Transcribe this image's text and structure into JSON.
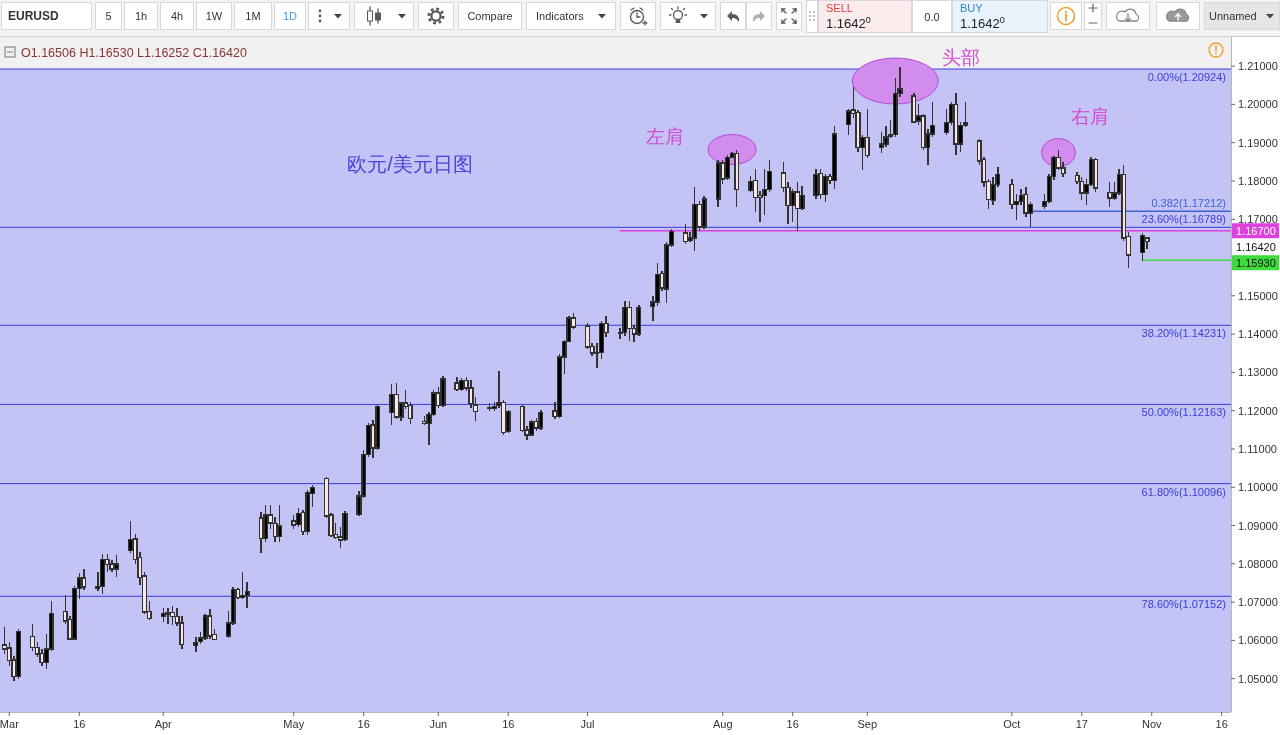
{
  "chart_data": {
    "type": "candlestick",
    "title": "欧元/美元日图",
    "subtitle": "O1.16506 H1.16530 L1.16252 C1.16420",
    "x": [
      "--02-28",
      "--03-01",
      "--03-02",
      "--03-03",
      "--03-06",
      "--03-07",
      "--03-08",
      "--03-09",
      "--03-10",
      "--03-13",
      "--03-14",
      "--03-15",
      "--03-16",
      "--03-17",
      "--03-20",
      "--03-21",
      "--03-22",
      "--03-23",
      "--03-24",
      "--03-27",
      "--03-28",
      "--03-29",
      "--03-30",
      "--03-31",
      "--04-03",
      "--04-04",
      "--04-05",
      "--04-06",
      "--04-07",
      "--04-10",
      "--04-11",
      "--04-12",
      "--04-13",
      "--04-14",
      "--04-17",
      "--04-18",
      "--04-19",
      "--04-20",
      "--04-21",
      "--04-24",
      "--04-25",
      "--04-26",
      "--04-27",
      "--04-28",
      "--05-01",
      "--05-02",
      "--05-03",
      "--05-04",
      "--05-05",
      "--05-08",
      "--05-09",
      "--05-10",
      "--05-11",
      "--05-12",
      "--05-15",
      "--05-16",
      "--05-17",
      "--05-18",
      "--05-19",
      "--05-22",
      "--05-23",
      "--05-24",
      "--05-25",
      "--05-26",
      "--05-29",
      "--05-30",
      "--05-31",
      "--06-01",
      "--06-02",
      "--06-05",
      "--06-06",
      "--06-07",
      "--06-08",
      "--06-09",
      "--06-12",
      "--06-13",
      "--06-14",
      "--06-15",
      "--06-16",
      "--06-19",
      "--06-20",
      "--06-21",
      "--06-22",
      "--06-23",
      "--06-26",
      "--06-27",
      "--06-28",
      "--06-29",
      "--06-30",
      "--07-03",
      "--07-04",
      "--07-05",
      "--07-06",
      "--07-07",
      "--07-10",
      "--07-11",
      "--07-12",
      "--07-13",
      "--07-14",
      "--07-17",
      "--07-18",
      "--07-19",
      "--07-20",
      "--07-21",
      "--07-24",
      "--07-25",
      "--07-26",
      "--07-27",
      "--07-28",
      "--07-31",
      "--08-01",
      "--08-02",
      "--08-03",
      "--08-04",
      "--08-07",
      "--08-08",
      "--08-09",
      "--08-10",
      "--08-11",
      "--08-14",
      "--08-15",
      "--08-16",
      "--08-17",
      "--08-18",
      "--08-21",
      "--08-22",
      "--08-23",
      "--08-24",
      "--08-25",
      "--08-28",
      "--08-29",
      "--08-30",
      "--08-31",
      "--09-01",
      "--09-04",
      "--09-05",
      "--09-06",
      "--09-07",
      "--09-08",
      "--09-11",
      "--09-12",
      "--09-13",
      "--09-14",
      "--09-15",
      "--09-18",
      "--09-19",
      "--09-20",
      "--09-21",
      "--09-22",
      "--09-25",
      "--09-26",
      "--09-27",
      "--09-28",
      "--09-29",
      "--10-02",
      "--10-03",
      "--10-04",
      "--10-05",
      "--10-06",
      "--10-09",
      "--10-10",
      "--10-11",
      "--10-12",
      "--10-13",
      "--10-16",
      "--10-17",
      "--10-18",
      "--10-19",
      "--10-20",
      "--10-23",
      "--10-24",
      "--10-25",
      "--10-26",
      "--10-27",
      "--10-30",
      "--10-31"
    ],
    "ohlc": [
      [
        1.0588,
        1.0634,
        1.0566,
        1.0578
      ],
      [
        1.058,
        1.0593,
        1.0536,
        1.0547
      ],
      [
        1.0549,
        1.0558,
        1.0497,
        1.0505
      ],
      [
        1.0505,
        1.0629,
        1.0501,
        1.0623
      ],
      [
        1.061,
        1.0642,
        1.0575,
        1.0581
      ],
      [
        1.0582,
        1.0593,
        1.0558,
        1.0564
      ],
      [
        1.0566,
        1.0575,
        1.0534,
        1.0543
      ],
      [
        1.0543,
        1.0616,
        1.0527,
        1.0578
      ],
      [
        1.0578,
        1.0702,
        1.0575,
        1.0671
      ],
      [
        1.0676,
        1.0717,
        1.0645,
        1.0651
      ],
      [
        1.0654,
        1.0663,
        1.0602,
        1.0604
      ],
      [
        1.0604,
        1.0741,
        1.0602,
        1.0735
      ],
      [
        1.0735,
        1.0774,
        1.0711,
        1.0763
      ],
      [
        1.0763,
        1.0785,
        1.0733,
        1.0739
      ],
      [
        1.0735,
        1.0776,
        1.073,
        1.0741
      ],
      [
        1.0741,
        1.0824,
        1.0724,
        1.0811
      ],
      [
        1.0811,
        1.0824,
        1.0781,
        1.0798
      ],
      [
        1.08,
        1.0807,
        1.0781,
        1.0787
      ],
      [
        1.0787,
        1.082,
        1.0768,
        1.08
      ],
      [
        1.0835,
        1.091,
        1.0829,
        1.0864
      ],
      [
        1.0865,
        1.0877,
        1.0802,
        1.0811
      ],
      [
        1.0816,
        1.0829,
        1.0746,
        1.0765
      ],
      [
        1.0768,
        1.0776,
        1.0671,
        1.0674
      ],
      [
        1.0676,
        1.0702,
        1.0654,
        1.0657
      ],
      [
        1.0662,
        1.0683,
        1.065,
        1.067
      ],
      [
        1.0671,
        1.0683,
        1.0645,
        1.0669
      ],
      [
        1.0673,
        1.0689,
        1.0641,
        1.0663
      ],
      [
        1.0663,
        1.0684,
        1.0639,
        1.0645
      ],
      [
        1.0645,
        1.0663,
        1.058,
        1.059
      ],
      [
        1.0587,
        1.0606,
        1.0571,
        1.0595
      ],
      [
        1.0597,
        1.0619,
        1.0593,
        1.0606
      ],
      [
        1.0606,
        1.0667,
        1.0604,
        1.0664
      ],
      [
        1.0664,
        1.068,
        1.0606,
        1.0612
      ],
      [
        1.0615,
        1.0628,
        1.0602,
        1.0603
      ],
      [
        1.0612,
        1.0676,
        1.0608,
        1.0645
      ],
      [
        1.0645,
        1.0737,
        1.0641,
        1.0733
      ],
      [
        1.0733,
        1.0735,
        1.0709,
        1.0712
      ],
      [
        1.0712,
        1.0778,
        1.0709,
        1.0717
      ],
      [
        1.0717,
        1.075,
        1.0686,
        1.0728
      ],
      [
        1.092,
        1.0934,
        1.0829,
        1.0866
      ],
      [
        1.0866,
        1.0951,
        1.0859,
        1.0928
      ],
      [
        1.0928,
        1.0951,
        1.0894,
        1.0907
      ],
      [
        1.0905,
        1.092,
        1.0859,
        1.0872
      ],
      [
        1.0872,
        1.0951,
        1.0859,
        1.0899
      ],
      [
        1.0912,
        1.0925,
        1.0894,
        1.0901
      ],
      [
        1.0903,
        1.0943,
        1.0899,
        1.0932
      ],
      [
        1.0934,
        1.0938,
        1.0878,
        1.0884
      ],
      [
        1.0884,
        1.0991,
        1.0878,
        1.0986
      ],
      [
        1.0983,
        1.1004,
        1.0949,
        1.0999
      ],
      [
        1.1023,
        1.1025,
        1.0922,
        1.0925
      ],
      [
        1.0928,
        1.0931,
        1.0872,
        1.0874
      ],
      [
        1.0877,
        1.0905,
        1.0866,
        1.0868
      ],
      [
        1.087,
        1.0894,
        1.0842,
        1.0862
      ],
      [
        1.0864,
        1.0936,
        1.0861,
        1.0932
      ],
      [
        1.0929,
        1.0989,
        1.0928,
        1.0977
      ],
      [
        1.0977,
        1.1095,
        1.0975,
        1.1085
      ],
      [
        1.1085,
        1.1165,
        1.1082,
        1.1161
      ],
      [
        1.1163,
        1.1174,
        1.1078,
        1.1103
      ],
      [
        1.1103,
        1.1213,
        1.11,
        1.1211
      ],
      [
        1.1196,
        1.1268,
        1.1165,
        1.1242
      ],
      [
        1.1242,
        1.127,
        1.1179,
        1.1183
      ],
      [
        1.1183,
        1.1222,
        1.1174,
        1.122
      ],
      [
        1.122,
        1.1253,
        1.1205,
        1.1211
      ],
      [
        1.1213,
        1.1222,
        1.1167,
        1.118
      ],
      [
        1.1172,
        1.1183,
        1.1165,
        1.1167
      ],
      [
        1.1167,
        1.1196,
        1.1113,
        1.119
      ],
      [
        1.119,
        1.1253,
        1.1187,
        1.1246
      ],
      [
        1.1246,
        1.1261,
        1.1209,
        1.1213
      ],
      [
        1.1213,
        1.1288,
        1.1211,
        1.1283
      ],
      [
        1.1272,
        1.1286,
        1.1253,
        1.1255
      ],
      [
        1.1255,
        1.1283,
        1.1253,
        1.1279
      ],
      [
        1.1279,
        1.1286,
        1.1253,
        1.1259
      ],
      [
        1.1259,
        1.1279,
        1.1209,
        1.1218
      ],
      [
        1.1215,
        1.1235,
        1.1174,
        1.1198
      ],
      [
        1.1209,
        1.1218,
        1.12,
        1.1205
      ],
      [
        1.1206,
        1.1222,
        1.12,
        1.1211
      ],
      [
        1.1213,
        1.1301,
        1.1209,
        1.122
      ],
      [
        1.1222,
        1.1227,
        1.1139,
        1.1143
      ],
      [
        1.1146,
        1.12,
        1.1143,
        1.1198
      ],
      [
        1.1211,
        1.1213,
        1.1146,
        1.1148
      ],
      [
        1.115,
        1.1157,
        1.1126,
        1.1137
      ],
      [
        1.1137,
        1.1174,
        1.1135,
        1.117
      ],
      [
        1.1172,
        1.1179,
        1.115,
        1.1155
      ],
      [
        1.1155,
        1.12,
        1.1152,
        1.1196
      ],
      [
        1.1199,
        1.1222,
        1.1181,
        1.1185
      ],
      [
        1.1185,
        1.1345,
        1.1183,
        1.134
      ],
      [
        1.134,
        1.1384,
        1.1297,
        1.1381
      ],
      [
        1.1381,
        1.1445,
        1.138,
        1.1442
      ],
      [
        1.1442,
        1.1452,
        1.1415,
        1.1419
      ],
      [
        1.1421,
        1.1428,
        1.1362,
        1.1366
      ],
      [
        1.1368,
        1.1375,
        1.1345,
        1.1351
      ],
      [
        1.1352,
        1.1375,
        1.1314,
        1.1349
      ],
      [
        1.1352,
        1.1432,
        1.1336,
        1.1428
      ],
      [
        1.1428,
        1.1445,
        1.1393,
        1.1404
      ],
      [
        1.1401,
        1.1415,
        1.1388,
        1.1404
      ],
      [
        1.1404,
        1.1484,
        1.1397,
        1.1469
      ],
      [
        1.1469,
        1.1484,
        1.1384,
        1.1415
      ],
      [
        1.1415,
        1.1423,
        1.138,
        1.14
      ],
      [
        1.14,
        1.1473,
        1.1397,
        1.1469
      ],
      [
        1.1472,
        1.1498,
        1.1436,
        1.1484
      ],
      [
        1.1484,
        1.1585,
        1.1476,
        1.1556
      ],
      [
        1.1559,
        1.1563,
        1.1515,
        1.152
      ],
      [
        1.1518,
        1.1638,
        1.1484,
        1.1633
      ],
      [
        1.1633,
        1.1672,
        1.163,
        1.1668
      ],
      [
        1.1664,
        1.1686,
        1.1638,
        1.1642
      ],
      [
        1.1644,
        1.1664,
        1.1642,
        1.1651
      ],
      [
        1.1651,
        1.1782,
        1.162,
        1.1738
      ],
      [
        1.1738,
        1.1747,
        1.1672,
        1.168
      ],
      [
        1.168,
        1.176,
        1.1677,
        1.1753
      ],
      [
        1.1753,
        1.1852,
        1.1734,
        1.1847
      ],
      [
        1.1847,
        1.1852,
        1.1795,
        1.1805
      ],
      [
        1.1808,
        1.1865,
        1.1804,
        1.1861
      ],
      [
        1.1862,
        1.1875,
        1.1861,
        1.1871
      ],
      [
        1.1871,
        1.1878,
        1.1734,
        1.1777
      ],
      [
        1.1775,
        1.1812,
        1.1773,
        1.1799
      ],
      [
        1.1801,
        1.183,
        1.1722,
        1.1757
      ],
      [
        1.1762,
        1.1773,
        1.1694,
        1.1757
      ],
      [
        1.1762,
        1.183,
        1.1712,
        1.1777
      ],
      [
        1.1777,
        1.1852,
        1.1773,
        1.1825
      ],
      [
        1.1821,
        1.1847,
        1.1773,
        1.1783
      ],
      [
        1.1783,
        1.1795,
        1.169,
        1.1736
      ],
      [
        1.1736,
        1.1777,
        1.1694,
        1.1771
      ],
      [
        1.1771,
        1.1795,
        1.1672,
        1.1728
      ],
      [
        1.1728,
        1.1786,
        1.1725,
        1.1762
      ],
      [
        1.1762,
        1.183,
        1.1756,
        1.1817
      ],
      [
        1.1819,
        1.183,
        1.1756,
        1.1764
      ],
      [
        1.1764,
        1.1817,
        1.1747,
        1.1812
      ],
      [
        1.1812,
        1.1817,
        1.1795,
        1.1801
      ],
      [
        1.1801,
        1.1943,
        1.1782,
        1.1923
      ],
      [
        1.1948,
        1.1987,
        1.1922,
        1.1983
      ],
      [
        1.1985,
        1.2044,
        1.1965,
        1.1976
      ],
      [
        1.1979,
        1.1983,
        1.1878,
        1.1888
      ],
      [
        1.1888,
        1.1917,
        1.183,
        1.1913
      ],
      [
        1.1913,
        1.1987,
        1.1861,
        1.1867
      ],
      [
        1.1888,
        1.1926,
        1.1874,
        1.1897
      ],
      [
        1.1895,
        1.1943,
        1.1891,
        1.1915
      ],
      [
        1.1917,
        1.1957,
        1.1913,
        1.1922
      ],
      [
        1.1922,
        1.2066,
        1.1917,
        1.2028
      ],
      [
        1.2028,
        1.2097,
        1.2022,
        1.204
      ],
      [
        1.2022,
        1.2027,
        1.1952,
        1.1954
      ],
      [
        1.1957,
        1.2,
        1.1948,
        1.197
      ],
      [
        1.197,
        1.1974,
        1.1882,
        1.1888
      ],
      [
        1.1888,
        1.1935,
        1.1843,
        1.1923
      ],
      [
        1.1923,
        1.2005,
        1.1917,
        1.1945
      ],
      [
        1.1926,
        1.1987,
        1.1922,
        1.1952
      ],
      [
        1.1952,
        1.2005,
        1.1948,
        1.2
      ],
      [
        1.2,
        1.2027,
        1.1869,
        1.1897
      ],
      [
        1.1897,
        1.1952,
        1.1878,
        1.1945
      ],
      [
        1.1946,
        1.2005,
        1.1943,
        1.1952
      ],
      [
        1.1904,
        1.1909,
        1.1843,
        1.1852
      ],
      [
        1.1856,
        1.1861,
        1.1786,
        1.1797
      ],
      [
        1.1799,
        1.1804,
        1.1729,
        1.1751
      ],
      [
        1.1749,
        1.1808,
        1.1738,
        1.179
      ],
      [
        1.179,
        1.1834,
        1.1786,
        1.1817
      ],
      [
        1.179,
        1.1804,
        1.1729,
        1.1738
      ],
      [
        1.1738,
        1.1764,
        1.1699,
        1.1747
      ],
      [
        1.1747,
        1.1777,
        1.1738,
        1.1762
      ],
      [
        1.1764,
        1.1782,
        1.1707,
        1.1716
      ],
      [
        1.1716,
        1.1743,
        1.1681,
        1.1738
      ],
      [
        1.1735,
        1.1764,
        1.1729,
        1.1747
      ],
      [
        1.1747,
        1.1817,
        1.1744,
        1.1812
      ],
      [
        1.1812,
        1.1863,
        1.1804,
        1.1861
      ],
      [
        1.1862,
        1.1878,
        1.183,
        1.1834
      ],
      [
        1.1834,
        1.1847,
        1.1812,
        1.1819
      ],
      [
        1.1815,
        1.1821,
        1.1795,
        1.1799
      ],
      [
        1.1799,
        1.1808,
        1.1751,
        1.1769
      ],
      [
        1.1769,
        1.1804,
        1.1738,
        1.179
      ],
      [
        1.179,
        1.1861,
        1.1788,
        1.1856
      ],
      [
        1.1856,
        1.1858,
        1.1773,
        1.1782
      ],
      [
        1.177,
        1.1795,
        1.1734,
        1.1756
      ],
      [
        1.1756,
        1.1795,
        1.1751,
        1.1769
      ],
      [
        1.1769,
        1.183,
        1.1764,
        1.1817
      ],
      [
        1.1817,
        1.1839,
        1.1646,
        1.1651
      ],
      [
        1.1655,
        1.1664,
        1.1575,
        1.1607
      ],
      [
        1.1613,
        1.1662,
        1.1593,
        1.1657
      ],
      [
        1.16506,
        1.1653,
        1.16252,
        1.1642
      ]
    ],
    "colors": [
      "#f9e6ea",
      "#f9e6ea",
      "#f9e6ea",
      "#000000",
      "#f9e6ea",
      "#f9e6ea",
      "#f9e6ea",
      "#000000",
      "#000000",
      "#f9e6ea",
      "#f9e6ea",
      "#000000",
      "#000000",
      "#f9e6ea",
      "#000000",
      "#000000",
      "#f9e6ea",
      "#f9e6ea",
      "#000000",
      "#000000",
      "#f9e6ea",
      "#f9e6ea",
      "#f9e6ea",
      "#f9e6ea",
      "#000000",
      "#f9e6ea",
      "#f9e6ea",
      "#f9e6ea",
      "#f9e6ea",
      "#000000",
      "#000000",
      "#000000",
      "#f9e6ea",
      "#f9e6ea",
      "#000000",
      "#000000",
      "#f9e6ea",
      "#000000",
      "#000000",
      "#f9e6ea",
      "#000000",
      "#f9e6ea",
      "#f9e6ea",
      "#000000",
      "#f9e6ea",
      "#000000",
      "#f9e6ea",
      "#000000",
      "#000000",
      "#f9e6ea",
      "#f9e6ea",
      "#f9e6ea",
      "#f9e6ea",
      "#000000",
      "#000000",
      "#000000",
      "#000000",
      "#f9e6ea",
      "#000000",
      "#000000",
      "#f9e6ea",
      "#000000",
      "#f9e6ea",
      "#f9e6ea",
      "#f9e6ea",
      "#000000",
      "#000000",
      "#f9e6ea",
      "#000000",
      "#f9e6ea",
      "#000000",
      "#f9e6ea",
      "#f9e6ea",
      "#f9e6ea",
      "#f9e6ea",
      "#000000",
      "#000000",
      "#f9e6ea",
      "#000000",
      "#f9e6ea",
      "#f9e6ea",
      "#000000",
      "#f9e6ea",
      "#000000",
      "#f9e6ea",
      "#000000",
      "#000000",
      "#000000",
      "#f9e6ea",
      "#f9e6ea",
      "#f9e6ea",
      "#f9e6ea",
      "#000000",
      "#f9e6ea",
      "#000000",
      "#000000",
      "#f9e6ea",
      "#f9e6ea",
      "#000000",
      "#000000",
      "#000000",
      "#f9e6ea",
      "#000000",
      "#000000",
      "#f9e6ea",
      "#000000",
      "#000000",
      "#f9e6ea",
      "#000000",
      "#000000",
      "#f9e6ea",
      "#000000",
      "#000000",
      "#f9e6ea",
      "#000000",
      "#f9e6ea",
      "#f9e6ea",
      "#000000",
      "#000000",
      "#f9e6ea",
      "#f9e6ea",
      "#000000",
      "#f9e6ea",
      "#000000",
      "#000000",
      "#f9e6ea",
      "#000000",
      "#f9e6ea",
      "#000000",
      "#000000",
      "#f9e6ea",
      "#f9e6ea",
      "#000000",
      "#f9e6ea",
      "#000000",
      "#000000",
      "#000000",
      "#000000",
      "#000000",
      "#f9e6ea",
      "#000000",
      "#f9e6ea",
      "#000000",
      "#000000",
      "#000000",
      "#000000",
      "#f9e6ea",
      "#000000",
      "#000000",
      "#f9e6ea",
      "#f9e6ea",
      "#f9e6ea",
      "#000000",
      "#000000",
      "#f9e6ea",
      "#000000",
      "#000000",
      "#f9e6ea",
      "#000000",
      "#000000",
      "#000000",
      "#000000",
      "#f9e6ea",
      "#f9e6ea",
      "#f9e6ea",
      "#f9e6ea",
      "#000000",
      "#000000",
      "#f9e6ea",
      "#f9e6ea",
      "#000000",
      "#000000",
      "#f9e6ea",
      "#f9e6ea",
      "#000000",
      "#f9e6ea"
    ],
    "xlim": [
      "--02-27",
      "--11-18"
    ],
    "xticks": [
      {
        "value": "--03-01",
        "label": "Mar"
      },
      {
        "value": "--03-16",
        "label": "16"
      },
      {
        "value": "--04-03",
        "label": "Apr"
      },
      {
        "value": "--05-01",
        "label": "May"
      },
      {
        "value": "--05-16",
        "label": "16"
      },
      {
        "value": "--06-01",
        "label": "Jun"
      },
      {
        "value": "--06-16",
        "label": "16"
      },
      {
        "value": "--07-03",
        "label": "Jul"
      },
      {
        "value": "--08-01",
        "label": "Aug"
      },
      {
        "value": "--08-16",
        "label": "16"
      },
      {
        "value": "--09-01",
        "label": "Sep"
      },
      {
        "value": "--10-02",
        "label": "Oct"
      },
      {
        "value": "--10-17",
        "label": "17"
      },
      {
        "value": "--11-01",
        "label": "Nov"
      },
      {
        "value": "--11-16",
        "label": "16"
      }
    ],
    "ylim": [
      1.0413,
      1.2176
    ],
    "yticks": [
      {
        "value": 1.05,
        "label": "1.05000"
      },
      {
        "value": 1.06,
        "label": "1.06000"
      },
      {
        "value": 1.07,
        "label": "1.07000"
      },
      {
        "value": 1.08,
        "label": "1.08000"
      },
      {
        "value": 1.09,
        "label": "1.09000"
      },
      {
        "value": 1.1,
        "label": "1.10000"
      },
      {
        "value": 1.11,
        "label": "1.11000"
      },
      {
        "value": 1.12,
        "label": "1.12000"
      },
      {
        "value": 1.13,
        "label": "1.13000"
      },
      {
        "value": 1.14,
        "label": "1.14000"
      },
      {
        "value": 1.15,
        "label": "1.15000"
      },
      {
        "value": 1.17,
        "label": "1.17000"
      },
      {
        "value": 1.18,
        "label": "1.18000"
      },
      {
        "value": 1.19,
        "label": "1.19000"
      },
      {
        "value": 1.2,
        "label": "1.20000"
      },
      {
        "value": 1.21,
        "label": "1.21000"
      }
    ],
    "bands": [
      {
        "axis": "y",
        "from": 1.0413,
        "to": 1.20924,
        "color": "#c3c3f5"
      }
    ],
    "ref_lines": [
      {
        "axis": "y",
        "value": 1.20924,
        "label": "0.00%(1.20924)",
        "color": "#3c3cdc"
      },
      {
        "axis": "y",
        "value": 1.16789,
        "label": "23.60%(1.16789)",
        "color": "#3c3cdc"
      },
      {
        "axis": "y",
        "value": 1.14231,
        "label": "38.20%(1.14231)",
        "color": "#3c3cdc"
      },
      {
        "axis": "y",
        "value": 1.12163,
        "label": "50.00%(1.12163)",
        "color": "#3c3cdc"
      },
      {
        "axis": "y",
        "value": 1.10096,
        "label": "61.80%(1.10096)",
        "color": "#3c3cdc"
      },
      {
        "axis": "y",
        "value": 1.07152,
        "label": "78.60%(1.07152)",
        "color": "#3c3cdc"
      }
    ],
    "series": [
      {
        "type": "line",
        "name": "0.382(1.17212)",
        "x": [
          "--10-06",
          "--11-18"
        ],
        "values": [
          1.17212,
          1.17212
        ],
        "color": "#3a66cc"
      },
      {
        "type": "line",
        "x": [
          "--07-10",
          "--11-18"
        ],
        "values": [
          1.167,
          1.167
        ],
        "color": "#e040e0",
        "value_labels": [
          null,
          "1.16700"
        ]
      },
      {
        "type": "line",
        "x": [
          "--10-30",
          "--11-18"
        ],
        "values": [
          1.1593,
          1.1593
        ],
        "color": "#3ddc3d",
        "value_labels": [
          null,
          "1.15930"
        ]
      }
    ],
    "annotations": [
      "EURUSD",
      "5",
      "1h",
      "4h",
      "1W",
      "1M",
      "1D",
      "Compare",
      "Indicators",
      "SELL",
      "1.1642$^{0}$",
      "0.0",
      "BUY",
      "1.1642$^{0}$",
      "Unnamed",
      "1.16420",
      {
        "text": "左肩",
        "x": "--08-03",
        "y": 1.1882
      },
      {
        "text": "头部",
        "x": "--09-07",
        "y": 1.2061
      },
      {
        "text": "右肩",
        "x": "--10-12",
        "y": 1.1874
      }
    ]
  }
}
